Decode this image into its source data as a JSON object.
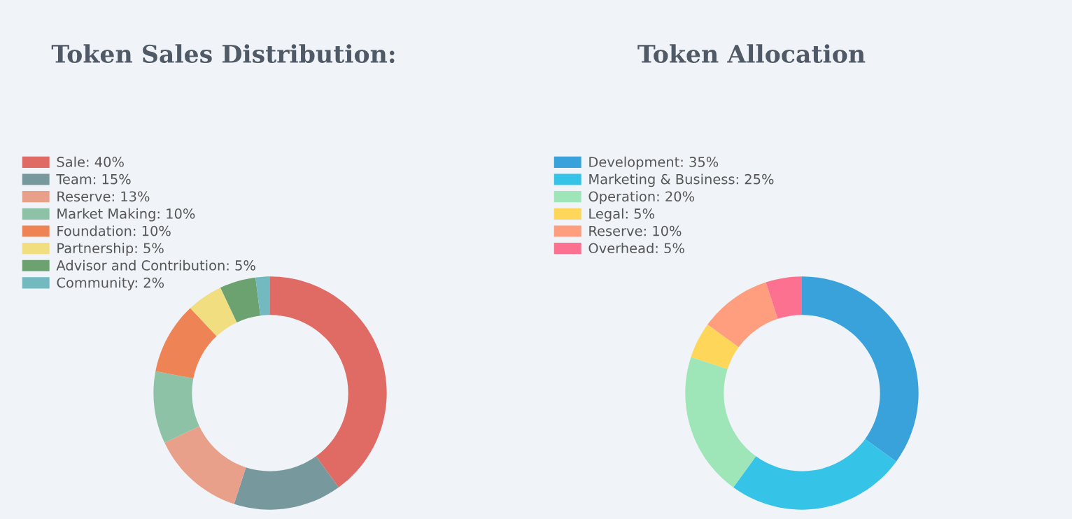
{
  "chart_data": [
    {
      "type": "donut",
      "title": "Token Sales Distribution:",
      "categories": [
        "Sale: 40%",
        "Team: 15%",
        "Reserve: 13%",
        "Market Making: 10%",
        "Foundation: 10%",
        "Partnership: 5%",
        "Advisor and Contribution: 5%",
        "Community: 2%"
      ],
      "values": [
        40,
        15,
        13,
        10,
        10,
        5,
        5,
        2
      ],
      "colors": [
        "#e06b65",
        "#77999e",
        "#e9a08a",
        "#8ec2a7",
        "#ee8455",
        "#f0de80",
        "#6ca270",
        "#72b9c0"
      ],
      "legend": "top left"
    },
    {
      "type": "donut",
      "title": "Token Allocation",
      "categories": [
        "Development: 35%",
        "Marketing & Business: 25%",
        "Operation: 20%",
        "Legal: 5%",
        "Reserve: 10%",
        "Overhead: 5%"
      ],
      "values": [
        35,
        25,
        20,
        5,
        10,
        5
      ],
      "colors": [
        "#3aa2db",
        "#35c3e8",
        "#9ee5b8",
        "#fed75a",
        "#fe9e7f",
        "#fd7190"
      ],
      "legend": "top left"
    }
  ]
}
